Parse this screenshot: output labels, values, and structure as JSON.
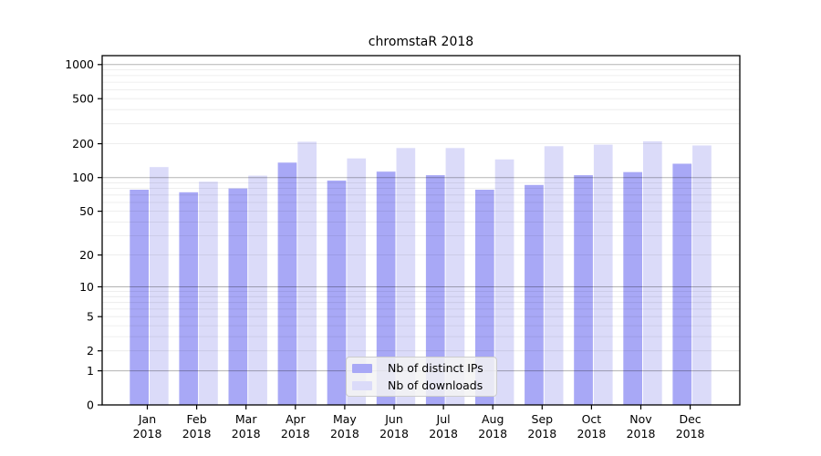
{
  "title": "chromstaR 2018",
  "legend": {
    "items": [
      {
        "label": "Nb of distinct IPs",
        "color": "#a8a8f6"
      },
      {
        "label": "Nb of downloads",
        "color": "#dbdbf9"
      }
    ]
  },
  "chart_data": {
    "type": "bar",
    "title": "chromstaR 2018",
    "categories": [
      [
        "Jan",
        "2018"
      ],
      [
        "Feb",
        "2018"
      ],
      [
        "Mar",
        "2018"
      ],
      [
        "Apr",
        "2018"
      ],
      [
        "May",
        "2018"
      ],
      [
        "Jun",
        "2018"
      ],
      [
        "Jul",
        "2018"
      ],
      [
        "Aug",
        "2018"
      ],
      [
        "Sep",
        "2018"
      ],
      [
        "Oct",
        "2018"
      ],
      [
        "Nov",
        "2018"
      ],
      [
        "Dec",
        "2018"
      ]
    ],
    "series": [
      {
        "name": "Nb of distinct IPs",
        "color": "#a8a8f6",
        "values": [
          78,
          74,
          80,
          136,
          94,
          113,
          105,
          78,
          86,
          105,
          112,
          133
        ]
      },
      {
        "name": "Nb of downloads",
        "color": "#dbdbf9",
        "values": [
          124,
          92,
          104,
          208,
          148,
          183,
          183,
          145,
          190,
          196,
          210,
          193
        ]
      }
    ],
    "yscale": "log1p",
    "ylim": [
      0,
      1200
    ],
    "yticks": [
      0,
      1,
      2,
      5,
      10,
      20,
      50,
      100,
      200,
      500,
      1000
    ],
    "major_gridlines": [
      1,
      10,
      100,
      1000
    ],
    "grid": true,
    "legend_position": "bottom-center"
  },
  "colors": {
    "background": "#ffffff",
    "axis": "#000000",
    "major_grid": "rgba(0,0,0,0.30)",
    "minor_grid": "rgba(0,0,0,0.085)",
    "tick_text": "#000000",
    "legend_bg": "#f3f3f3",
    "legend_border": "#cccccc"
  }
}
